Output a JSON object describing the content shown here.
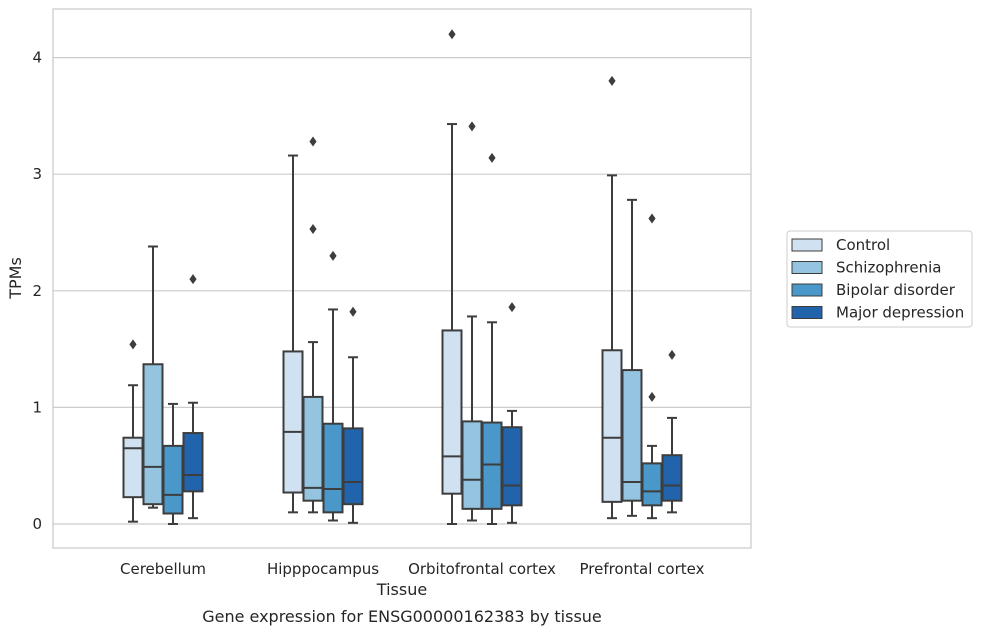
{
  "chart_data": {
    "type": "box",
    "title": "",
    "caption": "Gene expression for ENSG00000162383 by tissue",
    "xlabel": "Tissue",
    "ylabel": "TPMs",
    "ylim": [
      -0.2,
      4.3
    ],
    "yticks": [
      0,
      1,
      2,
      3,
      4
    ],
    "grid": "horizontal",
    "legend_placement": "right",
    "categories": [
      "Cerebellum",
      "Hipppocampus",
      "Orbitofrontal cortex",
      "Prefrontal cortex"
    ],
    "series": [
      {
        "name": "Control",
        "color": "#d0e1f2",
        "boxes": [
          {
            "whisker_low": 0.02,
            "q1": 0.23,
            "median": 0.65,
            "q3": 0.74,
            "whisker_high": 1.19,
            "outliers": [
              1.54
            ]
          },
          {
            "whisker_low": 0.1,
            "q1": 0.27,
            "median": 0.79,
            "q3": 1.48,
            "whisker_high": 3.16,
            "outliers": []
          },
          {
            "whisker_low": 0.0,
            "q1": 0.26,
            "median": 0.58,
            "q3": 1.66,
            "whisker_high": 3.43,
            "outliers": [
              4.2
            ]
          },
          {
            "whisker_low": 0.05,
            "q1": 0.19,
            "median": 0.74,
            "q3": 1.49,
            "whisker_high": 2.99,
            "outliers": [
              3.8
            ]
          }
        ]
      },
      {
        "name": "Schizophrenia",
        "color": "#94c4df",
        "boxes": [
          {
            "whisker_low": 0.14,
            "q1": 0.17,
            "median": 0.49,
            "q3": 1.37,
            "whisker_high": 2.38,
            "outliers": []
          },
          {
            "whisker_low": 0.1,
            "q1": 0.2,
            "median": 0.31,
            "q3": 1.09,
            "whisker_high": 1.56,
            "outliers": [
              2.53,
              3.28
            ]
          },
          {
            "whisker_low": 0.03,
            "q1": 0.13,
            "median": 0.38,
            "q3": 0.88,
            "whisker_high": 1.78,
            "outliers": [
              3.41
            ]
          },
          {
            "whisker_low": 0.07,
            "q1": 0.2,
            "median": 0.36,
            "q3": 1.32,
            "whisker_high": 2.78,
            "outliers": []
          }
        ]
      },
      {
        "name": "Bipolar disorder",
        "color": "#4a98c9",
        "boxes": [
          {
            "whisker_low": 0.0,
            "q1": 0.09,
            "median": 0.25,
            "q3": 0.67,
            "whisker_high": 1.03,
            "outliers": []
          },
          {
            "whisker_low": 0.03,
            "q1": 0.1,
            "median": 0.3,
            "q3": 0.86,
            "whisker_high": 1.84,
            "outliers": [
              2.3
            ]
          },
          {
            "whisker_low": 0.0,
            "q1": 0.13,
            "median": 0.51,
            "q3": 0.87,
            "whisker_high": 1.73,
            "outliers": [
              3.14
            ]
          },
          {
            "whisker_low": 0.05,
            "q1": 0.16,
            "median": 0.28,
            "q3": 0.52,
            "whisker_high": 0.67,
            "outliers": [
              1.09,
              2.62
            ]
          }
        ]
      },
      {
        "name": "Major depression",
        "color": "#2164ab",
        "boxes": [
          {
            "whisker_low": 0.05,
            "q1": 0.28,
            "median": 0.42,
            "q3": 0.78,
            "whisker_high": 1.04,
            "outliers": [
              2.1
            ]
          },
          {
            "whisker_low": 0.01,
            "q1": 0.17,
            "median": 0.36,
            "q3": 0.82,
            "whisker_high": 1.43,
            "outliers": [
              1.82
            ]
          },
          {
            "whisker_low": 0.01,
            "q1": 0.16,
            "median": 0.33,
            "q3": 0.83,
            "whisker_high": 0.97,
            "outliers": [
              1.86
            ]
          },
          {
            "whisker_low": 0.1,
            "q1": 0.2,
            "median": 0.33,
            "q3": 0.59,
            "whisker_high": 0.91,
            "outliers": [
              1.45
            ]
          }
        ]
      }
    ]
  }
}
